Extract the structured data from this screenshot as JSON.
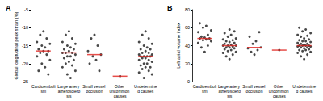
{
  "chart_data": [
    {
      "type": "scatter",
      "title": "A",
      "y_label": "Global longitudinal peak strain (%)",
      "categories": [
        "Cardioembolism",
        "Large artery atherosclerosis",
        "Small vessel occlusion",
        "Other uncommon causes",
        "Undetermined causes"
      ],
      "ylim": [
        -25,
        -5
      ],
      "yticks": [
        -25,
        -20,
        -15,
        -10,
        -5
      ],
      "grid": false,
      "series": [
        {
          "type": "scatter",
          "color": "#1a1a1a",
          "marker": "circle",
          "values": [
            [
              -11,
              -12,
              -13,
              -14,
              -14.5,
              -15,
              -15.5,
              -16,
              -16.5,
              -16.5,
              -17,
              -17.5,
              -18,
              -19,
              -20,
              -21,
              -22,
              -23
            ],
            [
              -11,
              -12,
              -13,
              -14,
              -14.5,
              -15,
              -15.5,
              -16,
              -16,
              -16.5,
              -17,
              -17,
              -17,
              -17.5,
              -18,
              -18,
              -18.5,
              -19,
              -19.5,
              -20,
              -20.5,
              -21,
              -22,
              -23,
              -24
            ],
            [
              -12,
              -13,
              -15,
              -16.5,
              -17.5,
              -18,
              -19,
              -20,
              -22
            ],
            [
              -23.5
            ],
            [
              -11,
              -12,
              -13,
              -14,
              -14.5,
              -15,
              -15.5,
              -16,
              -16,
              -16.5,
              -17,
              -17,
              -17.5,
              -17.5,
              -18,
              -18,
              -18,
              -18,
              -18.5,
              -18.5,
              -19,
              -19,
              -19.5,
              -20,
              -20,
              -20.5,
              -21,
              -21,
              -21.5,
              -22,
              -22.5,
              -23,
              -24
            ]
          ]
        },
        {
          "type": "median",
          "color": "#e0201b",
          "marker": "line",
          "values": [
            -16.5,
            -17,
            -17.5,
            -23.5,
            -18
          ]
        }
      ]
    },
    {
      "type": "scatter",
      "title": "B",
      "y_label": "Left atrial volume index",
      "categories": [
        "Cardioembolism",
        "Large artery atherosclerosis",
        "Small vessel occlusion",
        "Other uncommon causes",
        "Undetermined causes"
      ],
      "ylim": [
        0,
        80
      ],
      "yticks": [
        0,
        20,
        40,
        60,
        80
      ],
      "grid": false,
      "series": [
        {
          "type": "scatter",
          "color": "#1a1a1a",
          "marker": "circle",
          "values": [
            [
              33,
              38,
              40,
              43,
              45,
              46,
              47,
              48,
              48,
              49,
              50,
              52,
              55,
              57,
              60,
              62,
              65
            ],
            [
              25,
              28,
              30,
              32,
              33,
              34,
              35,
              36,
              37,
              38,
              38,
              39,
              40,
              40,
              40,
              41,
              42,
              43,
              44,
              45,
              46,
              47,
              48,
              50,
              52,
              54,
              56,
              58
            ],
            [
              30,
              33,
              35,
              37,
              38,
              42,
              45,
              50,
              55
            ],
            [
              35
            ],
            [
              25,
              28,
              30,
              32,
              33,
              34,
              35,
              35,
              36,
              37,
              38,
              38,
              39,
              39,
              40,
              40,
              40,
              40,
              41,
              42,
              42,
              43,
              44,
              45,
              45,
              46,
              47,
              48,
              50,
              51,
              52,
              54,
              56,
              58,
              60
            ]
          ]
        },
        {
          "type": "median",
          "color": "#e0201b",
          "marker": "line",
          "values": [
            48,
            40,
            38,
            35,
            40
          ]
        }
      ]
    }
  ]
}
